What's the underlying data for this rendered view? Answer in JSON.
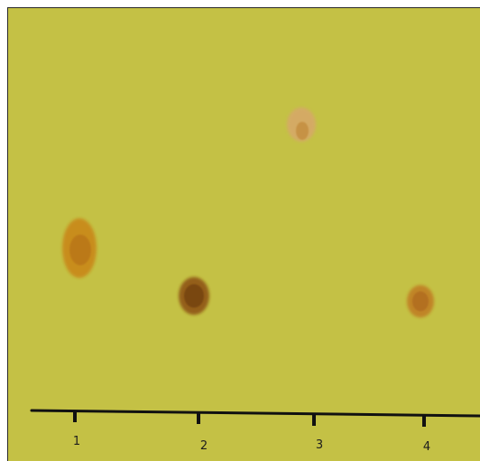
{
  "plate": {
    "background_color": "#c4c145",
    "axis_color": "#111111"
  },
  "lanes": [
    {
      "label": "1",
      "spot_color": "#c98417",
      "spot_core": "#b26a14"
    },
    {
      "label": "2",
      "spot_color": "#8f5412",
      "spot_core": "#6e3d0c"
    },
    {
      "label": "3",
      "spot_color": "#d7a76a",
      "spot_core": "#c28a3a"
    },
    {
      "label": "4",
      "spot_color": "#c07a24",
      "spot_core": "#a9601a"
    }
  ]
}
